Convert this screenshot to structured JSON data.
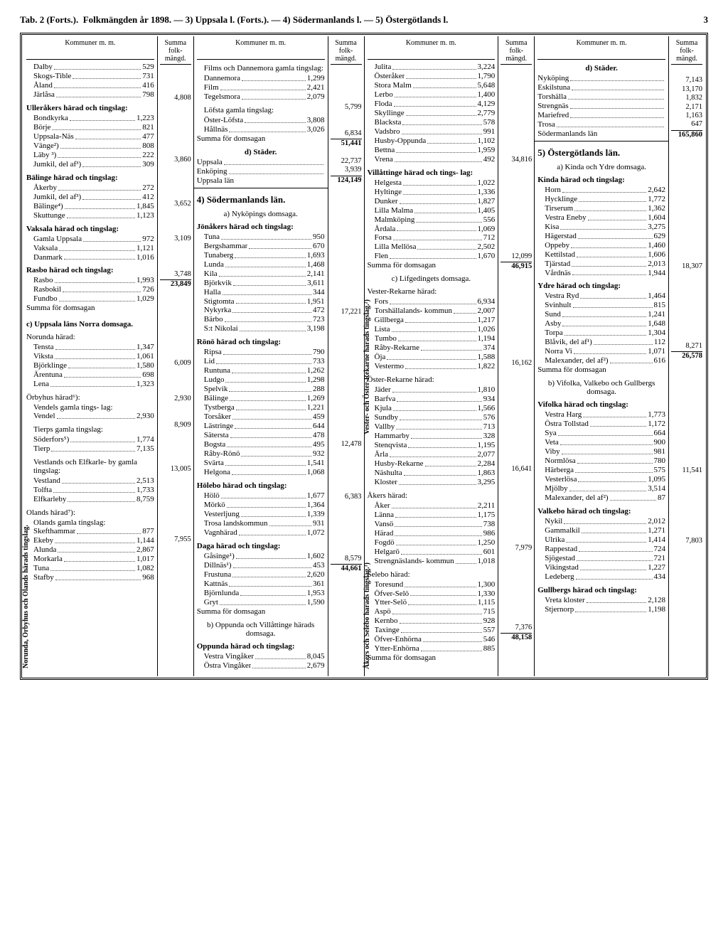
{
  "header": {
    "left": "Tab. 2 (Forts.).",
    "mid": "Folkmängden år 1898. — 3) Uppsala l. (Forts.). — 4) Södermanlands l. — 5) Östergötlands l.",
    "page": "3"
  },
  "col_headers": {
    "k": "Kommuner m. m.",
    "s": "Summa folk- mängd."
  },
  "c1": {
    "g1": [
      {
        "l": "Dalby",
        "v": "529"
      },
      {
        "l": "Skogs-Tible",
        "v": "731"
      },
      {
        "l": "Åland",
        "v": "416"
      },
      {
        "l": "Järlåsa",
        "v": "798"
      }
    ],
    "g1_sum": "4,808",
    "g2_title": "Ulleråkers härad och tingslag:",
    "g2": [
      {
        "l": "Bondkyrka",
        "v": "1,223"
      },
      {
        "l": "Börje",
        "v": "821"
      },
      {
        "l": "Uppsala-Näs",
        "v": "477"
      },
      {
        "l": "Vänge²)",
        "v": "808"
      },
      {
        "l": "Läby ³)",
        "v": "222"
      },
      {
        "l": "Jumkil, del af³)",
        "v": "309"
      }
    ],
    "g2_sum": "3,860",
    "g3_title": "Bälinge härad och tingslag:",
    "g3": [
      {
        "l": "Åkerby",
        "v": "272"
      },
      {
        "l": "Jumkil, del af³)",
        "v": "412"
      },
      {
        "l": "Bälinge⁴)",
        "v": "1,845"
      },
      {
        "l": "Skuttunge",
        "v": "1,123"
      }
    ],
    "g3_sum": "3,652",
    "g4_title": "Vaksala härad och tingslag:",
    "g4": [
      {
        "l": "Gamla Uppsala",
        "v": "972"
      },
      {
        "l": "Vaksala",
        "v": "1,121"
      },
      {
        "l": "Danmark",
        "v": "1,016"
      }
    ],
    "g4_sum": "3,109",
    "g5_title": "Rasbo härad och tingslag:",
    "g5": [
      {
        "l": "Rasbo",
        "v": "1,993"
      },
      {
        "l": "Rasbokil",
        "v": "726"
      },
      {
        "l": "Fundbo",
        "v": "1,029"
      }
    ],
    "g5_sum": "3,748",
    "g_sum_label": "Summa för domsagan",
    "g_sum": "23,849",
    "g6_title": "c) Uppsala läns Norra domsaga.",
    "g6a_title": "Norunda härad:",
    "g6a": [
      {
        "l": "Tensta",
        "v": "1,347"
      },
      {
        "l": "Viksta",
        "v": "1,061"
      },
      {
        "l": "Björklinge",
        "v": "1,580"
      },
      {
        "l": "Ärentuna",
        "v": "698"
      },
      {
        "l": "Lena",
        "v": "1,323"
      }
    ],
    "g6a_sum": "6,009",
    "g6b_title": "Örbyhus härad⁶):",
    "g6b_sub": "Vendels gamla tings- lag:",
    "g6b": [
      {
        "l": "Vendel",
        "v": "2,930"
      }
    ],
    "g6b_sum": "2,930",
    "g6c_title": "Tierps gamla tingslag:",
    "g6c": [
      {
        "l": "Söderfors⁵)",
        "v": "1,774"
      },
      {
        "l": "Tierp",
        "v": "7,135"
      }
    ],
    "g6c_sum": "8,909",
    "g6d_title": "Vestlands och Elfkarle- by gamla tingslag:",
    "g6d": [
      {
        "l": "Vestland",
        "v": "2,513"
      },
      {
        "l": "Tolfta",
        "v": "1,733"
      },
      {
        "l": "Elfkarleby",
        "v": "8,759"
      }
    ],
    "g6d_sum": "13,005",
    "g7_title": "Olands härad⁷):",
    "g7_sub": "Olands gamla tingslag:",
    "g7": [
      {
        "l": "Skefthammar",
        "v": "877"
      },
      {
        "l": "Ekeby",
        "v": "1,144"
      },
      {
        "l": "Alunda",
        "v": "2,867"
      },
      {
        "l": "Morkarla",
        "v": "1,017"
      },
      {
        "l": "Tuna",
        "v": "1,082"
      },
      {
        "l": "Stafby",
        "v": "968"
      }
    ],
    "g7_sum": "7,955",
    "vtext": "Norunda, Örbyhus och Olands härads tingslag."
  },
  "c2": {
    "g1_title": "Films och Dannemora gamla tingslag:",
    "g1": [
      {
        "l": "Dannemora",
        "v": "1,299"
      },
      {
        "l": "Film",
        "v": "2,421"
      },
      {
        "l": "Tegelsmora",
        "v": "2,079"
      }
    ],
    "g1_sum": "5,799",
    "g2_title": "Löfsta gamla tingslag:",
    "g2": [
      {
        "l": "Öster-Löfsta",
        "v": "3,808"
      },
      {
        "l": "Hållnäs",
        "v": "3,026"
      }
    ],
    "g2_sum": "6,834",
    "g_sum_label": "Summa för domsagan",
    "g_sum": "51,441",
    "stader_title": "d) Städer.",
    "stader": [
      {
        "l": "Uppsala",
        "v": "22,737"
      },
      {
        "l": "Enköping",
        "v": "3,939"
      }
    ],
    "lan_label": "Uppsala län",
    "lan_sum": "124,149",
    "lan4_title": "4) Södermanlands län.",
    "sub_a": "a) Nyköpings domsaga.",
    "g3_title": "Jönåkers härad och tingslag:",
    "g3": [
      {
        "l": "Tuna",
        "v": "950"
      },
      {
        "l": "Bergshammar",
        "v": "670"
      },
      {
        "l": "Tunaberg",
        "v": "1,693"
      },
      {
        "l": "Lunda",
        "v": "1,468"
      },
      {
        "l": "Kila",
        "v": "2,141"
      },
      {
        "l": "Björkvik",
        "v": "3,611"
      },
      {
        "l": "Halla",
        "v": "344"
      },
      {
        "l": "Stigtomta",
        "v": "1,951"
      },
      {
        "l": "Nykyrka",
        "v": "472"
      },
      {
        "l": "Bärbo",
        "v": "723"
      },
      {
        "l": "S:t Nikolai",
        "v": "3,198"
      }
    ],
    "g3_sum": "17,221",
    "g4_title": "Rönö härad och tingslag:",
    "g4": [
      {
        "l": "Ripsa",
        "v": "790"
      },
      {
        "l": "Lid",
        "v": "733"
      },
      {
        "l": "Runtuna",
        "v": "1,262"
      },
      {
        "l": "Ludgo",
        "v": "1,298"
      },
      {
        "l": "Spelvik",
        "v": "288"
      },
      {
        "l": "Bälinge",
        "v": "1,269"
      },
      {
        "l": "Tystberga",
        "v": "1,221"
      },
      {
        "l": "Torsåker",
        "v": "459"
      },
      {
        "l": "Lästringe",
        "v": "644"
      },
      {
        "l": "Sätersta",
        "v": "478"
      },
      {
        "l": "Bogsta",
        "v": "495"
      },
      {
        "l": "Råby-Rönö",
        "v": "932"
      },
      {
        "l": "Svärta",
        "v": "1,541"
      },
      {
        "l": "Helgona",
        "v": "1,068"
      }
    ],
    "g4_sum": "12,478",
    "g5_title": "Hölebo härad och tingslag:",
    "g5": [
      {
        "l": "Hölö",
        "v": "1,677"
      },
      {
        "l": "Mörkö",
        "v": "1,364"
      },
      {
        "l": "Vesterljung",
        "v": "1,339"
      },
      {
        "l": "Trosa landskommun",
        "v": "931"
      },
      {
        "l": "Vagnhärad",
        "v": "1,072"
      }
    ],
    "g5_sum": "6,383",
    "g6_title": "Daga härad och tingslag:",
    "g6": [
      {
        "l": "Gåsinge¹)",
        "v": "1,602"
      },
      {
        "l": "Dillnäs¹)",
        "v": "453"
      },
      {
        "l": "Frustuna",
        "v": "2,620"
      },
      {
        "l": "Kattnäs",
        "v": "361"
      },
      {
        "l": "Björnlunda",
        "v": "1,953"
      },
      {
        "l": "Gryt",
        "v": "1,590"
      }
    ],
    "g6_sum": "8,579",
    "g_sum2_label": "Summa för domsagan",
    "g_sum2": "44,661",
    "sub_b": "b) Oppunda och Villåttinge härads domsaga.",
    "g7_title": "Oppunda härad och tingslag:",
    "g7": [
      {
        "l": "Vestra Vingåker",
        "v": "8,045"
      },
      {
        "l": "Östra Vingåker",
        "v": "2,679"
      }
    ]
  },
  "c3": {
    "g1": [
      {
        "l": "Julita",
        "v": "3,224"
      },
      {
        "l": "Österåker",
        "v": "1,790"
      },
      {
        "l": "Stora Malm",
        "v": "5,648"
      },
      {
        "l": "Lerbo",
        "v": "1,400"
      },
      {
        "l": "Floda",
        "v": "4,129"
      },
      {
        "l": "Skyllinge",
        "v": "2,779"
      },
      {
        "l": "Blacksta",
        "v": "578"
      },
      {
        "l": "Vadsbro",
        "v": "991"
      },
      {
        "l": "Husby-Oppunda",
        "v": "1,102"
      },
      {
        "l": "Bettna",
        "v": "1,959"
      },
      {
        "l": "Vrena",
        "v": "492"
      }
    ],
    "g1_sum": "34,816",
    "g2_title": "Villåttinge härad och tings- lag:",
    "g2": [
      {
        "l": "Helgesta",
        "v": "1,022"
      },
      {
        "l": "Hyltinge",
        "v": "1,336"
      },
      {
        "l": "Dunker",
        "v": "1,827"
      },
      {
        "l": "Lilla Malma",
        "v": "1,405"
      },
      {
        "l": "Malmköping",
        "v": "556"
      },
      {
        "l": "Årdala",
        "v": "1,069"
      },
      {
        "l": "Forsa",
        "v": "712"
      },
      {
        "l": "Lilla Mellösa",
        "v": "2,502"
      },
      {
        "l": "Flen",
        "v": "1,670"
      }
    ],
    "g2_sum": "12,099",
    "g_sum_label": "Summa för domsagan",
    "g_sum": "46,915",
    "sub_c": "c) Lifgedingets domsaga.",
    "g3_title": "Vester-Rekarne härad:",
    "g3": [
      {
        "l": "Fors",
        "v": "6,934"
      },
      {
        "l": "Torshällalands- kommun",
        "v": "2,007"
      },
      {
        "l": "Gillberga",
        "v": "1,217"
      },
      {
        "l": "Lista",
        "v": "1,026"
      },
      {
        "l": "Tumbo",
        "v": "1,194"
      },
      {
        "l": "Råby-Rekarne",
        "v": "374"
      },
      {
        "l": "Öja",
        "v": "1,588"
      },
      {
        "l": "Vestermo",
        "v": "1,822"
      }
    ],
    "g3_sum": "16,162",
    "g4_title": "Öster-Rekarne härad:",
    "g4": [
      {
        "l": "Jäder",
        "v": "1,810"
      },
      {
        "l": "Barfva",
        "v": "934"
      },
      {
        "l": "Kjula",
        "v": "1,566"
      },
      {
        "l": "Sundby",
        "v": "576"
      },
      {
        "l": "Vallby",
        "v": "713"
      },
      {
        "l": "Hammarby",
        "v": "328"
      },
      {
        "l": "Stenqvista",
        "v": "1,195"
      },
      {
        "l": "Ärla",
        "v": "2,077"
      },
      {
        "l": "Husby-Rekarne",
        "v": "2,284"
      },
      {
        "l": "Näshulta",
        "v": "1,863"
      },
      {
        "l": "Kloster",
        "v": "3,295"
      }
    ],
    "g4_sum": "16,641",
    "g5_title": "Åkers härad:",
    "g5": [
      {
        "l": "Åker",
        "v": "2,211"
      },
      {
        "l": "Länna",
        "v": "1,175"
      },
      {
        "l": "Vansö",
        "v": "738"
      },
      {
        "l": "Härad",
        "v": "986"
      },
      {
        "l": "Fogdö",
        "v": "1,250"
      },
      {
        "l": "Helgarö",
        "v": "601"
      },
      {
        "l": "Strengnäslands- kommun",
        "v": "1,018"
      }
    ],
    "g5_sum": "7,979",
    "g6_title": "Selebo härad:",
    "g6": [
      {
        "l": "Toresund",
        "v": "1,300"
      },
      {
        "l": "Öfver-Selö",
        "v": "1,330"
      },
      {
        "l": "Ytter-Selö",
        "v": "1,115"
      },
      {
        "l": "Aspö",
        "v": "715"
      },
      {
        "l": "Kernbo",
        "v": "928"
      },
      {
        "l": "Taxinge",
        "v": "557"
      },
      {
        "l": "Öfver-Enhörna",
        "v": "546"
      },
      {
        "l": "Ytter-Enhörna",
        "v": "885"
      }
    ],
    "g6_sum": "7,376",
    "g_sum2_label": "Summa för domsagan",
    "g_sum2": "48,158",
    "vtext1": "Vester- och Öster-Rekarne härads tingslag.²)",
    "vtext2": "Åkers och Selebo härads tingslag.³)"
  },
  "c4": {
    "stader_title": "d) Städer.",
    "stader": [
      {
        "l": "Nyköping",
        "v": "7,143"
      },
      {
        "l": "Eskilstuna",
        "v": "13,170"
      },
      {
        "l": "Torshälla",
        "v": "1,832"
      },
      {
        "l": "Strengnäs",
        "v": "2,171"
      },
      {
        "l": "Mariefred",
        "v": "1,163"
      },
      {
        "l": "Trosa",
        "v": "647"
      }
    ],
    "lan_label": "Södermanlands län",
    "lan_sum": "165,860",
    "lan5_title": "5) Östergötlands län.",
    "sub_a": "a) Kinda och Ydre domsaga.",
    "g1_title": "Kinda härad och tingslag:",
    "g1": [
      {
        "l": "Horn",
        "v": "2,642"
      },
      {
        "l": "Hycklinge",
        "v": "1,772"
      },
      {
        "l": "Tirserum",
        "v": "1,362"
      },
      {
        "l": "Vestra Eneby",
        "v": "1,604"
      },
      {
        "l": "Kisa",
        "v": "3,275"
      },
      {
        "l": "Hägerstad",
        "v": "629"
      },
      {
        "l": "Oppeby",
        "v": "1,460"
      },
      {
        "l": "Kettilstad",
        "v": "1,606"
      },
      {
        "l": "Tjärstad",
        "v": "2,013"
      },
      {
        "l": "Vårdnäs",
        "v": "1,944"
      }
    ],
    "g1_sum": "18,307",
    "g2_title": "Ydre härad och tingslag:",
    "g2": [
      {
        "l": "Vestra Ryd",
        "v": "1,464"
      },
      {
        "l": "Svinhult",
        "v": "815"
      },
      {
        "l": "Sund",
        "v": "1,241"
      },
      {
        "l": "Asby",
        "v": "1,648"
      },
      {
        "l": "Torpa",
        "v": "1,304"
      },
      {
        "l": "Blåvik, del af¹)",
        "v": "112"
      },
      {
        "l": "Norra Vi",
        "v": "1,071"
      },
      {
        "l": "Malexander, del af²)",
        "v": "616"
      }
    ],
    "g2_sum": "8,271",
    "g_sum_label": "Summa för domsagan",
    "g_sum": "26,578",
    "sub_b": "b) Vifolka, Valkebo och Gullbergs domsaga.",
    "g3_title": "Vifolka härad och tingslag:",
    "g3": [
      {
        "l": "Vestra Harg",
        "v": "1,773"
      },
      {
        "l": "Östra Tollstad",
        "v": "1,172"
      },
      {
        "l": "Sya",
        "v": "664"
      },
      {
        "l": "Veta",
        "v": "900"
      },
      {
        "l": "Viby",
        "v": "981"
      },
      {
        "l": "Normlösa",
        "v": "780"
      },
      {
        "l": "Härberga",
        "v": "575"
      },
      {
        "l": "Vesterlösa",
        "v": "1,095"
      },
      {
        "l": "Mjölby",
        "v": "3,514"
      },
      {
        "l": "Malexander, del af²)",
        "v": "87"
      }
    ],
    "g3_sum": "11,541",
    "g4_title": "Valkebo härad och tingslag:",
    "g4": [
      {
        "l": "Nykil",
        "v": "2,012"
      },
      {
        "l": "Gammalkil",
        "v": "1,271"
      },
      {
        "l": "Ulrika",
        "v": "1,414"
      },
      {
        "l": "Rappestad",
        "v": "724"
      },
      {
        "l": "Sjögestad",
        "v": "721"
      },
      {
        "l": "Vikingstad",
        "v": "1,227"
      },
      {
        "l": "Ledeberg",
        "v": "434"
      }
    ],
    "g4_sum": "7,803",
    "g5_title": "Gullbergs härad och tingslag:",
    "g5": [
      {
        "l": "Vreta kloster",
        "v": "2,128"
      },
      {
        "l": "Stjernorp",
        "v": "1,198"
      }
    ]
  }
}
